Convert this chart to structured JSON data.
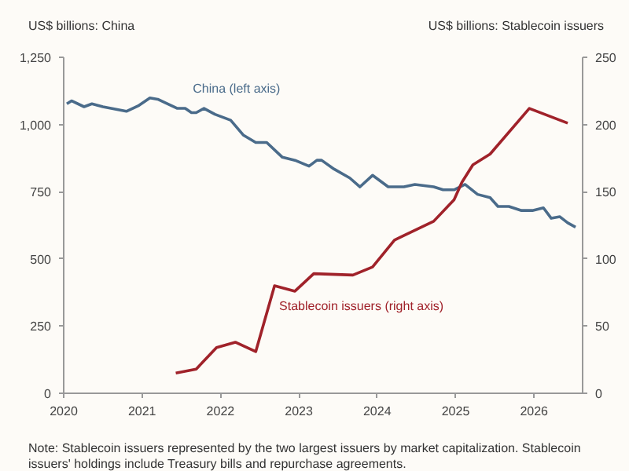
{
  "chart_data": {
    "type": "line",
    "ylabel": "US$ billions: China",
    "y2label": "US$ billions: Stablecoin issuers",
    "xlim": [
      2020,
      2026.62
    ],
    "xticks": [
      2020,
      2021,
      2022,
      2023,
      2024,
      2025,
      2026
    ],
    "ylim": [
      0,
      1250
    ],
    "yticks": [
      0,
      250,
      500,
      750,
      {
        "value": 1000,
        "label": "1,000"
      },
      {
        "value": 1250,
        "label": "1,250"
      }
    ],
    "y2lim": [
      0,
      250
    ],
    "y2ticks": [
      0,
      50,
      100,
      150,
      200,
      250
    ],
    "series": [
      {
        "name": "China (left axis)",
        "color": "#4a6b8a",
        "x": [
          2020.04,
          2020.1,
          2020.26,
          2020.36,
          2020.5,
          2020.8,
          2020.96,
          2021.1,
          2021.2,
          2021.29,
          2021.45,
          2021.55,
          2021.63,
          2021.69,
          2021.79,
          2021.93,
          2022.13,
          2022.29,
          2022.45,
          2022.59,
          2022.79,
          2022.95,
          2023.13,
          2023.23,
          2023.29,
          2023.45,
          2023.65,
          2023.78,
          2023.94,
          2024.14,
          2024.34,
          2024.48,
          2024.72,
          2024.84,
          2024.98,
          2025.12,
          2025.28,
          2025.44,
          2025.54,
          2025.68,
          2025.84,
          2025.98,
          2026.12,
          2026.22,
          2026.33,
          2026.43,
          2026.53
        ],
        "values": [
          1077,
          1088,
          1066,
          1077,
          1066,
          1049,
          1071,
          1099,
          1094,
          1082,
          1060,
          1060,
          1044,
          1044,
          1060,
          1038,
          1016,
          961,
          933,
          933,
          878,
          867,
          845,
          867,
          867,
          834,
          801,
          768,
          811,
          768,
          768,
          777,
          768,
          757,
          757,
          777,
          740,
          728,
          695,
          695,
          680,
          680,
          690,
          651,
          657,
          634,
          618
        ]
      },
      {
        "name": "Stablecoin issuers (right axis)",
        "color": "#a0222a",
        "axis": "y2",
        "x": [
          2021.43,
          2021.69,
          2021.95,
          2022.19,
          2022.45,
          2022.69,
          2022.95,
          2023.19,
          2023.69,
          2023.94,
          2024.22,
          2024.72,
          2024.98,
          2025.08,
          2025.22,
          2025.44,
          2025.94,
          2026.43
        ],
        "values": [
          15,
          18,
          34,
          38,
          31,
          80,
          76,
          89,
          88,
          94,
          114,
          128,
          144,
          157,
          170,
          178,
          212,
          201
        ]
      }
    ],
    "annotations": [
      "Note: Stablecoin issuers represented by the two largest issuers by market capitalization. Stablecoin issuers' holdings include Treasury bills and repurchase agreements."
    ]
  }
}
